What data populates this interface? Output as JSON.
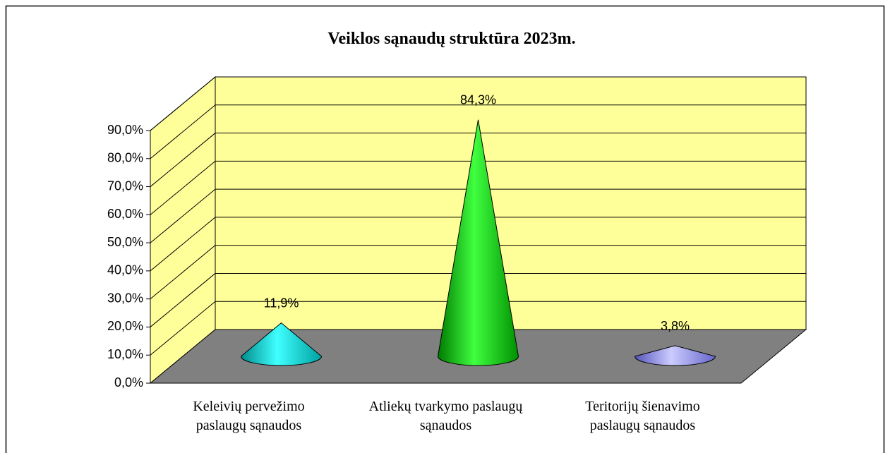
{
  "chart_data": {
    "type": "bar3d-cone",
    "title": "Veiklos sąnaudų struktūra 2023m.",
    "categories": [
      "Keleivių pervežimo paslaugų sąnaudos",
      "Atliekų tvarkymo paslaugų sąnaudos",
      "Teritorijų šienavimo paslaugų sąnaudos"
    ],
    "values": [
      11.9,
      84.3,
      3.8
    ],
    "value_labels": [
      "11,9%",
      "84,3%",
      "3,8%"
    ],
    "colors": [
      "#00e0e0",
      "#00dd00",
      "#9999ff"
    ],
    "ylim": [
      0,
      90
    ],
    "yticks": [
      {
        "value": 0,
        "label": "0,0%"
      },
      {
        "value": 10,
        "label": "10,0%"
      },
      {
        "value": 20,
        "label": "20,0%"
      },
      {
        "value": 30,
        "label": "30,0%"
      },
      {
        "value": 40,
        "label": "40,0%"
      },
      {
        "value": 50,
        "label": "50,0%"
      },
      {
        "value": 60,
        "label": "60,0%"
      },
      {
        "value": 70,
        "label": "70,0%"
      },
      {
        "value": 80,
        "label": "80,0%"
      },
      {
        "value": 90,
        "label": "90,0%"
      }
    ],
    "grid": true
  }
}
